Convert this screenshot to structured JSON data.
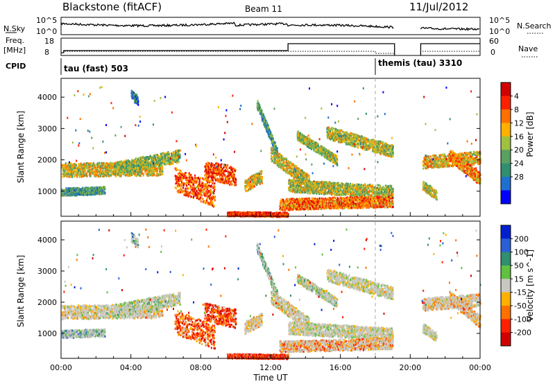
{
  "header": {
    "station": "Blackstone (fitACF)",
    "beam": "Beam 11",
    "date": "11/Jul/2012"
  },
  "sky_panel": {
    "left_label": "N.Sky",
    "right_label": "N.Search",
    "y_ticks_left": [
      "10^5",
      "10^0"
    ],
    "y_ticks_right": [
      "10^5",
      "10^0"
    ]
  },
  "freq_panel": {
    "left_label_1": "Freq.",
    "left_label_2": "[MHz]",
    "y_ticks_left": [
      "18",
      "8"
    ],
    "right_label": "Nave",
    "y_ticks_right": [
      "60",
      "0"
    ]
  },
  "cpid": {
    "label": "CPID",
    "modes": [
      {
        "text": "tau (fast) 503",
        "start_hour": 0
      },
      {
        "text": "themis (tau) 3310",
        "start_hour": 18
      }
    ]
  },
  "chart_data": [
    {
      "type": "heatmap",
      "panel": "power",
      "ylabel": "Slant Range [km]",
      "y_ticks": [
        1000,
        2000,
        3000,
        4000
      ],
      "ylim": [
        200,
        4600
      ],
      "colorbar_label": "Power [dB]",
      "colorbar_ticks": [
        4,
        8,
        12,
        16,
        20,
        24,
        28
      ],
      "colors": [
        "#0000ff",
        "#1f6fd0",
        "#2f8f6f",
        "#5aa060",
        "#a0c040",
        "#ffb000",
        "#ff7000",
        "#ff2000",
        "#d00000"
      ],
      "data_gap_hours": [
        19.1,
        20.6
      ]
    },
    {
      "type": "heatmap",
      "panel": "velocity",
      "ylabel": "Slant Range [km]",
      "y_ticks": [
        1000,
        2000,
        3000,
        4000
      ],
      "ylim": [
        200,
        4600
      ],
      "colorbar_label": "Velocity [m s^-1]",
      "colorbar_ticks": [
        200,
        100,
        50,
        15,
        -15,
        -50,
        -100,
        -200
      ],
      "colors": [
        "#0020d0",
        "#2a5fd8",
        "#2f8f6f",
        "#60c040",
        "#c8c8c0",
        "#ffb000",
        "#ff7000",
        "#ff2000",
        "#d00000"
      ],
      "ground_scatter_color": "#b8b8b0",
      "data_gap_hours": [
        19.1,
        20.6
      ]
    }
  ],
  "x_axis": {
    "label": "Time UT",
    "ticks": [
      "00:00",
      "04:00",
      "08:00",
      "12:00",
      "16:00",
      "20:00",
      "00:00"
    ]
  }
}
